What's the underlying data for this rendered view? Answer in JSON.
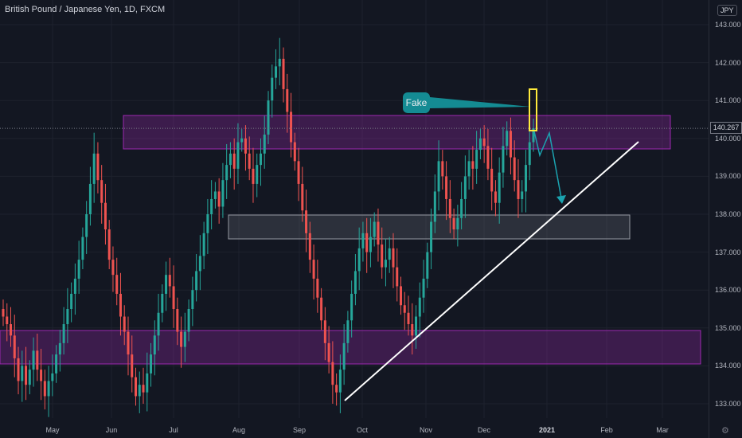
{
  "header": {
    "symbol": "British Pound / Japanese Yen, 1D, FXCM",
    "currency": "JPY"
  },
  "current_price": "140.267",
  "annotation": {
    "label": "Fake"
  },
  "y_ticks": [
    "143.000",
    "142.000",
    "141.000",
    "140.000",
    "139.000",
    "138.000",
    "137.000",
    "136.000",
    "135.000",
    "134.000",
    "133.000"
  ],
  "x_ticks": [
    "May",
    "Jun",
    "Jul",
    "Aug",
    "Sep",
    "Oct",
    "Nov",
    "Dec",
    "2021",
    "Feb",
    "Mar"
  ],
  "settings_icon": "gear-icon",
  "colors": {
    "up": "#26a69a",
    "down": "#ef5350",
    "zone": "#9c27b0",
    "grey_zone": "#787b86",
    "arrow": "#1ba3b0",
    "fake_marker": "#ffeb3b"
  },
  "chart_data": {
    "type": "candlestick",
    "title": "British Pound / Japanese Yen, 1D, FXCM",
    "ylim": [
      132.8,
      143.3
    ],
    "y_tick_values": [
      143,
      142,
      141,
      140,
      139,
      138,
      137,
      136,
      135,
      134,
      133
    ],
    "x_tick_months": [
      "May",
      "Jun",
      "Jul",
      "Aug",
      "Sep",
      "Oct",
      "Nov",
      "Dec",
      "2021",
      "Feb",
      "Mar"
    ],
    "closes": [
      135.3,
      135.1,
      134.8,
      134.2,
      133.6,
      134.0,
      133.5,
      133.9,
      134.4,
      133.9,
      133.6,
      133.2,
      133.6,
      133.8,
      134.3,
      134.6,
      135.1,
      135.5,
      135.9,
      136.3,
      136.8,
      137.4,
      138.0,
      138.8,
      139.6,
      138.9,
      138.3,
      137.6,
      136.8,
      136.4,
      135.9,
      135.3,
      134.9,
      134.3,
      133.7,
      133.2,
      133.5,
      133.3,
      133.8,
      134.3,
      134.8,
      135.4,
      135.9,
      136.4,
      136.1,
      135.5,
      134.9,
      134.5,
      134.9,
      135.5,
      136.0,
      136.5,
      136.9,
      137.5,
      138.0,
      138.4,
      138.6,
      138.2,
      138.9,
      139.3,
      139.6,
      139.2,
      139.9,
      140.0,
      139.6,
      139.2,
      138.8,
      139.3,
      139.6,
      140.1,
      141.0,
      141.6,
      141.9,
      142.1,
      141.3,
      140.7,
      139.9,
      139.4,
      138.8,
      138.1,
      137.5,
      136.8,
      136.3,
      135.8,
      135.2,
      134.6,
      134.1,
      133.5,
      133.3,
      133.9,
      134.6,
      135.2,
      135.9,
      136.5,
      137.1,
      137.5,
      137.0,
      137.4,
      137.8,
      137.2,
      136.6,
      136.8,
      137.1,
      136.6,
      136.1,
      135.6,
      135.4,
      135.1,
      134.8,
      135.3,
      135.8,
      136.3,
      137.0,
      137.8,
      138.6,
      139.4,
      139.0,
      138.4,
      137.9,
      137.6,
      137.9,
      138.4,
      139.0,
      139.4,
      139.2,
      139.7,
      140.0,
      139.8,
      139.2,
      138.6,
      138.3,
      139.1,
      139.8,
      140.2,
      139.5,
      138.9,
      138.4,
      138.6,
      139.3,
      139.9,
      140.27
    ]
  }
}
